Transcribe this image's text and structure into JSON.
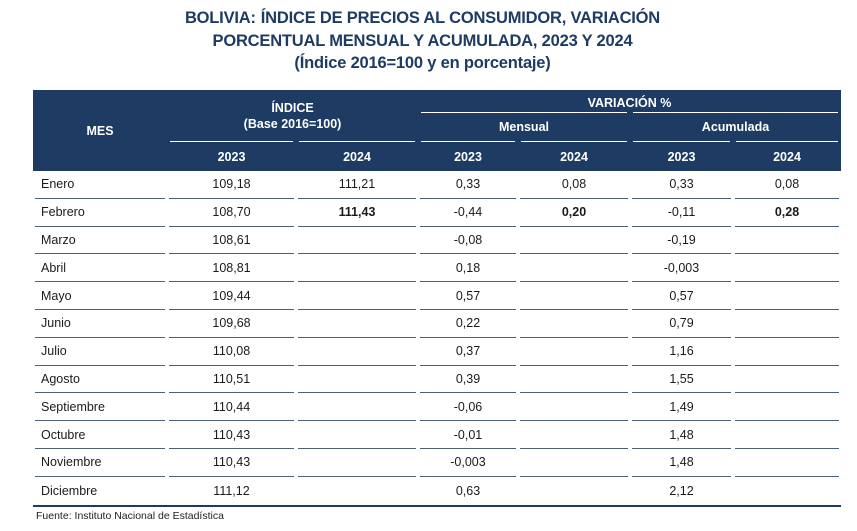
{
  "title": {
    "prefix": "BOLIVIA:",
    "line1_rest": "ÍNDICE DE PRECIOS AL CONSUMIDOR, VARIACIÓN",
    "line2": "PORCENTUAL MENSUAL Y ACUMULADA, 2023 Y 2024",
    "line3": "(Índice 2016=100 y en porcentaje)"
  },
  "chart_data": {
    "type": "table",
    "title": "BOLIVIA: ÍNDICE DE PRECIOS AL CONSUMIDOR, VARIACIÓN PORCENTUAL MENSUAL Y ACUMULADA, 2023 Y 2024 (Índice 2016=100 y en porcentaje)",
    "header": {
      "mes": "MES",
      "indice_line1": "ÍNDICE",
      "indice_line2": "(Base 2016=100)",
      "variacion": "VARIACIÓN %",
      "mensual": "Mensual",
      "acumulada": "Acumulada",
      "years": [
        "2023",
        "2024",
        "2023",
        "2024",
        "2023",
        "2024"
      ]
    },
    "rows": [
      {
        "mes": "Enero",
        "indice_2023": "109,18",
        "indice_2024": "111,21",
        "mensual_2023": "0,33",
        "mensual_2024": "0,08",
        "acumulada_2023": "0,33",
        "acumulada_2024": "0,08",
        "emphasis": false
      },
      {
        "mes": "Febrero",
        "indice_2023": "108,70",
        "indice_2024": "111,43",
        "mensual_2023": "-0,44",
        "mensual_2024": "0,20",
        "acumulada_2023": "-0,11",
        "acumulada_2024": "0,28",
        "emphasis": true
      },
      {
        "mes": "Marzo",
        "indice_2023": "108,61",
        "indice_2024": "",
        "mensual_2023": "-0,08",
        "mensual_2024": "",
        "acumulada_2023": "-0,19",
        "acumulada_2024": "",
        "emphasis": false
      },
      {
        "mes": "Abril",
        "indice_2023": "108,81",
        "indice_2024": "",
        "mensual_2023": "0,18",
        "mensual_2024": "",
        "acumulada_2023": "-0,003",
        "acumulada_2024": "",
        "emphasis": false
      },
      {
        "mes": "Mayo",
        "indice_2023": "109,44",
        "indice_2024": "",
        "mensual_2023": "0,57",
        "mensual_2024": "",
        "acumulada_2023": "0,57",
        "acumulada_2024": "",
        "emphasis": false
      },
      {
        "mes": "Junio",
        "indice_2023": "109,68",
        "indice_2024": "",
        "mensual_2023": "0,22",
        "mensual_2024": "",
        "acumulada_2023": "0,79",
        "acumulada_2024": "",
        "emphasis": false
      },
      {
        "mes": "Julio",
        "indice_2023": "110,08",
        "indice_2024": "",
        "mensual_2023": "0,37",
        "mensual_2024": "",
        "acumulada_2023": "1,16",
        "acumulada_2024": "",
        "emphasis": false
      },
      {
        "mes": "Agosto",
        "indice_2023": "110,51",
        "indice_2024": "",
        "mensual_2023": "0,39",
        "mensual_2024": "",
        "acumulada_2023": "1,55",
        "acumulada_2024": "",
        "emphasis": false
      },
      {
        "mes": "Septiembre",
        "indice_2023": "110,44",
        "indice_2024": "",
        "mensual_2023": "-0,06",
        "mensual_2024": "",
        "acumulada_2023": "1,49",
        "acumulada_2024": "",
        "emphasis": false
      },
      {
        "mes": "Octubre",
        "indice_2023": "110,43",
        "indice_2024": "",
        "mensual_2023": "-0,01",
        "mensual_2024": "",
        "acumulada_2023": "1,48",
        "acumulada_2024": "",
        "emphasis": false
      },
      {
        "mes": "Noviembre",
        "indice_2023": "110,43",
        "indice_2024": "",
        "mensual_2023": "-0,003",
        "mensual_2024": "",
        "acumulada_2023": "1,48",
        "acumulada_2024": "",
        "emphasis": false
      },
      {
        "mes": "Diciembre",
        "indice_2023": "111,12",
        "indice_2024": "",
        "mensual_2023": "0,63",
        "mensual_2024": "",
        "acumulada_2023": "2,12",
        "acumulada_2024": "",
        "emphasis": false
      }
    ]
  },
  "footer": {
    "source": "Fuente: Instituto Nacional de Estadística"
  },
  "colors": {
    "navy": "#1d3b63",
    "header_text": "#ffffff",
    "body_text": "#1b1b1b",
    "separator": "#4e6078",
    "background": "#ffffff"
  }
}
